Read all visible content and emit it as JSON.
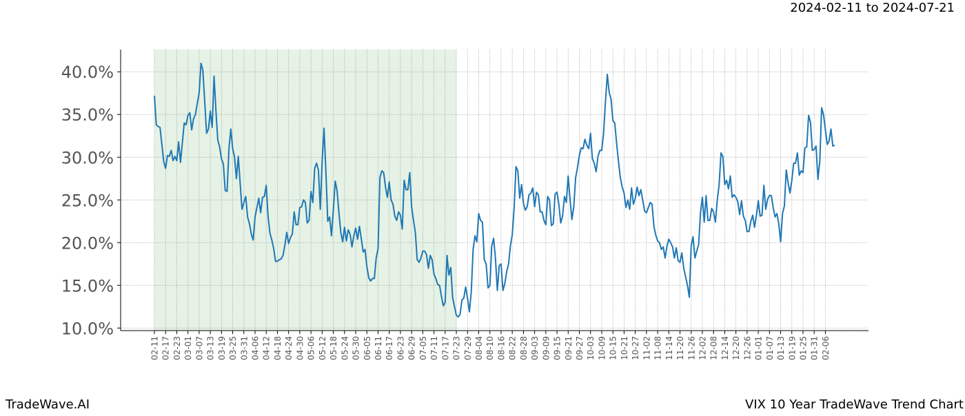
{
  "chart_data": {
    "type": "line",
    "subtitle": "2024-02-11 to 2024-07-21",
    "brand": "TradeWave.AI",
    "title": "VIX 10 Year TradeWave Trend Chart",
    "categories": [
      "02-11",
      null,
      null,
      null,
      null,
      null,
      "02-17",
      null,
      null,
      null,
      null,
      null,
      "02-23",
      null,
      null,
      null,
      null,
      null,
      "03-01",
      null,
      null,
      null,
      null,
      null,
      "03-07",
      null,
      null,
      null,
      null,
      null,
      "03-13",
      null,
      null,
      null,
      null,
      null,
      "03-19",
      null,
      null,
      null,
      null,
      null,
      "03-25",
      null,
      null,
      null,
      null,
      null,
      "03-31",
      null,
      null,
      null,
      null,
      null,
      "04-06",
      null,
      null,
      null,
      null,
      null,
      "04-12",
      null,
      null,
      null,
      null,
      null,
      "04-18",
      null,
      null,
      null,
      null,
      null,
      "04-24",
      null,
      null,
      null,
      null,
      null,
      "04-30",
      null,
      null,
      null,
      null,
      null,
      "05-06",
      null,
      null,
      null,
      null,
      null,
      "05-12",
      null,
      null,
      null,
      null,
      null,
      "05-18",
      null,
      null,
      null,
      null,
      null,
      "05-24",
      null,
      null,
      null,
      null,
      null,
      "05-30",
      null,
      null,
      null,
      null,
      null,
      "06-05",
      null,
      null,
      null,
      null,
      null,
      "06-11",
      null,
      null,
      null,
      null,
      null,
      "06-17",
      null,
      null,
      null,
      null,
      null,
      "06-23",
      null,
      null,
      null,
      null,
      null,
      "06-29",
      null,
      null,
      null,
      null,
      null,
      "07-05",
      null,
      null,
      null,
      null,
      null,
      "07-11",
      null,
      null,
      null,
      null,
      null,
      "07-17",
      null,
      null,
      null,
      null,
      null,
      "07-23",
      null,
      null,
      null,
      null,
      null,
      "07-29",
      null,
      null,
      null,
      null,
      null,
      "08-04",
      null,
      null,
      null,
      null,
      null,
      "08-10",
      null,
      null,
      null,
      null,
      null,
      "08-16",
      null,
      null,
      null,
      null,
      null,
      "08-22",
      null,
      null,
      null,
      null,
      null,
      "08-28",
      null,
      null,
      null,
      null,
      null,
      "09-03",
      null,
      null,
      null,
      null,
      null,
      "09-09",
      null,
      null,
      null,
      null,
      null,
      "09-15",
      null,
      null,
      null,
      null,
      null,
      "09-21",
      null,
      null,
      null,
      null,
      null,
      "09-27",
      null,
      null,
      null,
      null,
      null,
      "10-03",
      null,
      null,
      null,
      null,
      null,
      "10-09",
      null,
      null,
      null,
      null,
      null,
      "10-15",
      null,
      null,
      null,
      null,
      null,
      "10-21",
      null,
      null,
      null,
      null,
      null,
      "10-27",
      null,
      null,
      null,
      null,
      null,
      "11-02",
      null,
      null,
      null,
      null,
      null,
      "11-08",
      null,
      null,
      null,
      null,
      null,
      "11-14",
      null,
      null,
      null,
      null,
      null,
      "11-20",
      null,
      null,
      null,
      null,
      null,
      "11-26",
      null,
      null,
      null,
      null,
      null,
      "12-02",
      null,
      null,
      null,
      null,
      null,
      "12-08",
      null,
      null,
      null,
      null,
      null,
      "12-14",
      null,
      null,
      null,
      null,
      null,
      "12-20",
      null,
      null,
      null,
      null,
      null,
      "12-26",
      null,
      null,
      null,
      null,
      null,
      "01-01",
      null,
      null,
      null,
      null,
      null,
      "01-07",
      null,
      null,
      null,
      null,
      null,
      "01-13",
      null,
      null,
      null,
      null,
      null,
      "01-19",
      null,
      null,
      null,
      null,
      null,
      "01-25",
      null,
      null,
      null,
      null,
      null,
      "01-31",
      null,
      null,
      null,
      null,
      null,
      "02-06",
      null,
      null,
      null,
      null,
      null
    ],
    "values": [
      37.2,
      33.8,
      33.6,
      33.5,
      31.5,
      29.5,
      28.7,
      30.2,
      30.1,
      30.8,
      29.6,
      30.1,
      29.6,
      31.8,
      29.4,
      31.7,
      34.0,
      33.8,
      34.9,
      35.2,
      33.2,
      34.5,
      35.0,
      36.3,
      37.5,
      41.0,
      40.2,
      36.5,
      32.8,
      33.3,
      35.4,
      33.5,
      39.5,
      35.5,
      32.0,
      31.2,
      29.8,
      29.2,
      26.1,
      26.0,
      31.0,
      33.3,
      31.0,
      30.0,
      27.5,
      30.1,
      27.0,
      23.9,
      24.7,
      25.4,
      23.0,
      22.2,
      21.0,
      20.3,
      23.0,
      24.1,
      25.2,
      23.5,
      25.3,
      25.4,
      26.7,
      23.0,
      21.1,
      20.3,
      19.3,
      17.8,
      17.8,
      18.0,
      18.1,
      18.5,
      19.7,
      21.2,
      19.9,
      20.6,
      21.0,
      23.6,
      22.1,
      22.1,
      24.1,
      24.2,
      25.0,
      24.7,
      22.3,
      22.6,
      26.0,
      24.7,
      28.7,
      29.3,
      28.5,
      23.9,
      29.5,
      33.4,
      28.4,
      22.5,
      23.0,
      20.8,
      23.8,
      27.2,
      26.1,
      23.5,
      21.2,
      20.1,
      21.8,
      20.2,
      21.5,
      21.0,
      19.5,
      20.8,
      21.7,
      20.4,
      21.9,
      20.5,
      18.9,
      19.2,
      17.2,
      15.9,
      15.5,
      15.8,
      15.8,
      18.2,
      19.3,
      27.6,
      28.4,
      28.2,
      26.5,
      25.3,
      27.1,
      25.0,
      24.5,
      23.1,
      22.6,
      23.6,
      23.2,
      21.6,
      27.3,
      26.2,
      26.2,
      28.2,
      24.2,
      22.6,
      21.2,
      18.0,
      17.7,
      18.2,
      19.0,
      19.0,
      18.6,
      17.0,
      18.5,
      18.0,
      16.3,
      15.8,
      15.1,
      15.0,
      13.7,
      12.6,
      13.0,
      18.5,
      16.2,
      17.1,
      13.6,
      12.5,
      11.5,
      11.3,
      11.6,
      13.3,
      13.5,
      14.8,
      13.5,
      11.9,
      14.2,
      19.2,
      20.8,
      20.1,
      23.4,
      22.6,
      22.4,
      18.0,
      17.5,
      14.7,
      15.0,
      19.6,
      20.5,
      18.1,
      14.4,
      17.3,
      17.5,
      14.4,
      15.2,
      16.6,
      17.5,
      19.6,
      20.9,
      24.0,
      28.9,
      28.4,
      25.2,
      26.8,
      24.6,
      23.8,
      24.2,
      25.6,
      25.8,
      26.4,
      24.2,
      25.9,
      25.6,
      23.6,
      23.6,
      22.6,
      22.1,
      25.4,
      25.0,
      22.0,
      22.2,
      25.7,
      25.9,
      24.5,
      22.3,
      23.1,
      25.4,
      24.7,
      27.8,
      25.1,
      22.7,
      24.2,
      27.6,
      28.8,
      30.2,
      31.1,
      31.0,
      32.1,
      31.4,
      31.0,
      32.8,
      29.8,
      29.3,
      28.3,
      30.1,
      30.8,
      30.8,
      32.8,
      36.5,
      39.7,
      37.6,
      36.8,
      34.3,
      34.0,
      31.6,
      29.5,
      27.6,
      26.5,
      25.8,
      24.1,
      25.0,
      23.9,
      26.4,
      24.5,
      25.2,
      26.5,
      25.5,
      26.2,
      25.0,
      23.7,
      23.5,
      24.1,
      24.7,
      24.5,
      21.9,
      20.9,
      20.2,
      20.0,
      19.2,
      19.5,
      18.2,
      19.6,
      20.4,
      20.0,
      19.5,
      18.2,
      19.4,
      17.9,
      17.7,
      18.8,
      17.0,
      16.0,
      15.0,
      13.6,
      19.6,
      20.7,
      18.2,
      19.0,
      19.8,
      23.5,
      25.3,
      22.4,
      25.5,
      22.6,
      22.6,
      24.0,
      23.6,
      22.4,
      25.0,
      26.8,
      30.5,
      30.1,
      26.8,
      27.3,
      26.3,
      27.8,
      25.3,
      25.6,
      25.3,
      24.8,
      23.3,
      24.9,
      23.1,
      22.6,
      21.3,
      21.3,
      22.5,
      23.2,
      21.8,
      23.2,
      24.9,
      23.1,
      23.2,
      26.7,
      23.9,
      25.1,
      25.5,
      25.5,
      24.1,
      23.0,
      23.4,
      22.2,
      20.1,
      23.4,
      24.3,
      28.5,
      27.0,
      25.8,
      27.3,
      29.3,
      29.3,
      30.5,
      27.9,
      28.4,
      28.2,
      31.1,
      31.2,
      34.9,
      34.1,
      30.8,
      30.9,
      31.3,
      27.4,
      29.5,
      35.8,
      35.0,
      33.2,
      31.5,
      31.9,
      33.3,
      31.3,
      31.4
    ],
    "color": "#1f77b4",
    "ylim": [
      9.7,
      42.6
    ],
    "yticks": [
      {
        "value": 10,
        "label": "10.0%"
      },
      {
        "value": 15,
        "label": "15.0%"
      },
      {
        "value": 20,
        "label": "20.0%"
      },
      {
        "value": 25,
        "label": "25.0%"
      },
      {
        "value": 30,
        "label": "30.0%"
      },
      {
        "value": 35,
        "label": "35.0%"
      },
      {
        "value": 40,
        "label": "40.0%"
      }
    ],
    "grid": true,
    "shade": {
      "from": 0,
      "to": 162,
      "color": "#e5f2e5"
    }
  }
}
